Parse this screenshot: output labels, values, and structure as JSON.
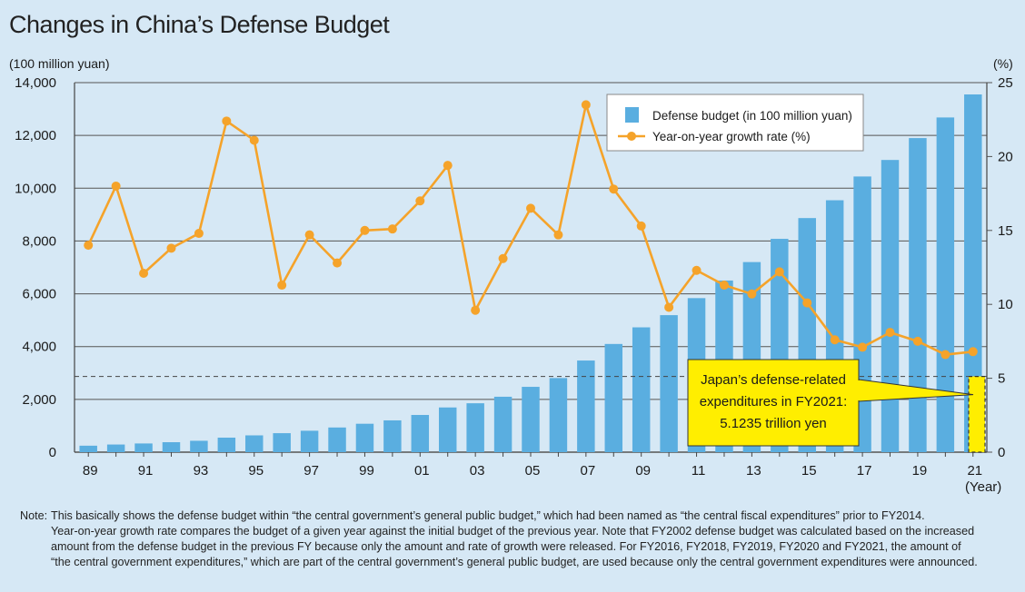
{
  "title": "Changes in China’s Defense Budget",
  "chart_data": {
    "type": "bar+line",
    "title": "Changes in China’s Defense Budget",
    "left_axis_label": "(100 million yuan)",
    "right_axis_label": "(%)",
    "xlabel": "(Year)",
    "ylim_left": [
      0,
      14000
    ],
    "ylim_right": [
      0,
      25
    ],
    "left_ticks": [
      "0",
      "2,000",
      "4,000",
      "6,000",
      "8,000",
      "10,000",
      "12,000",
      "14,000"
    ],
    "right_ticks": [
      "0",
      "5",
      "10",
      "15",
      "20",
      "25"
    ],
    "x_tick_labels": [
      "89",
      "91",
      "93",
      "95",
      "97",
      "99",
      "01",
      "03",
      "05",
      "07",
      "09",
      "11",
      "13",
      "15",
      "17",
      "19",
      "21"
    ],
    "years": [
      1989,
      1990,
      1991,
      1992,
      1993,
      1994,
      1995,
      1996,
      1997,
      1998,
      1999,
      2000,
      2001,
      2002,
      2003,
      2004,
      2005,
      2006,
      2007,
      2008,
      2009,
      2010,
      2011,
      2012,
      2013,
      2014,
      2015,
      2016,
      2017,
      2018,
      2019,
      2020,
      2021
    ],
    "series": [
      {
        "name": "Defense budget (in 100 million yuan)",
        "kind": "bar",
        "color": "#5aaee0",
        "values": [
          245,
          290,
          330,
          378,
          432,
          550,
          637,
          720,
          812,
          935,
          1077,
          1205,
          1410,
          1694,
          1853,
          2100,
          2475,
          2807,
          3472,
          4099,
          4729,
          5191,
          5836,
          6503,
          7202,
          8082,
          8869,
          9544,
          10444,
          11070,
          11899,
          12680,
          13553
        ]
      },
      {
        "name": "Year-on-year growth rate (%)",
        "kind": "line",
        "color": "#f5a32a",
        "values": [
          14.0,
          18.0,
          12.1,
          13.8,
          14.8,
          22.4,
          21.1,
          11.3,
          14.7,
          12.8,
          15.0,
          15.1,
          17.0,
          19.4,
          9.6,
          13.1,
          16.5,
          14.7,
          23.5,
          17.8,
          15.3,
          9.8,
          12.3,
          11.3,
          10.7,
          12.2,
          10.1,
          7.6,
          7.1,
          8.1,
          7.5,
          6.6,
          6.8
        ]
      }
    ],
    "reference_line": {
      "value": 5.1235,
      "axis": "right",
      "style": "dashed"
    },
    "japan_bar": {
      "year": 2021,
      "value": 5.1235,
      "axis": "right",
      "color": "#ffee00"
    },
    "legend_position": "top-right",
    "annotation": {
      "lines": [
        "Japan’s defense-related",
        "expenditures in FY2021:",
        "5.1235 trillion yen"
      ]
    }
  },
  "note": {
    "label": "Note:",
    "lines": [
      "This basically shows the defense budget within “the central government’s general public budget,” which had been named as “the central fiscal expenditures” prior to FY2014.",
      "Year-on-year growth rate compares the budget of a given year against the initial budget of the previous year. Note that FY2002 defense budget was calculated based on the increased",
      "amount from the defense budget in the previous FY because only the amount and rate of growth were released. For FY2016, FY2018, FY2019, FY2020 and FY2021, the amount of",
      "“the central government expenditures,” which are part of the central government’s general public budget, are used because only the central government expenditures were announced."
    ]
  }
}
